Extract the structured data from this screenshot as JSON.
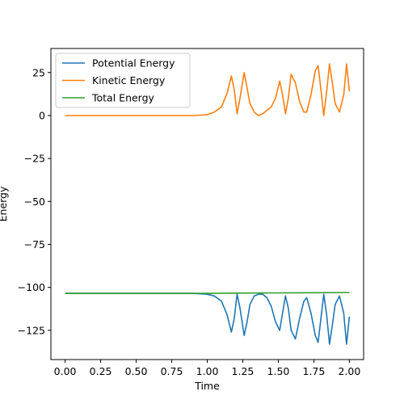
{
  "chart_data": {
    "type": "line",
    "xlabel": "Time",
    "ylabel": "Energy",
    "xlim": [
      -0.1,
      2.1
    ],
    "ylim": [
      -142,
      39
    ],
    "xticks": [
      0.0,
      0.25,
      0.5,
      0.75,
      1.0,
      1.25,
      1.5,
      1.75,
      2.0
    ],
    "xtick_labels": [
      "0.00",
      "0.25",
      "0.50",
      "0.75",
      "1.00",
      "1.25",
      "1.50",
      "1.75",
      "2.00"
    ],
    "yticks": [
      25,
      0,
      -25,
      -50,
      -75,
      -100,
      -125
    ],
    "ytick_labels": [
      "25",
      "0",
      "−25",
      "−50",
      "−75",
      "−100",
      "−125"
    ],
    "legend_position": "upper-left",
    "grid": false,
    "series": [
      {
        "name": "Potential Energy",
        "color": "#1f77b4",
        "x": [
          0.0,
          0.5,
          0.9,
          1.0,
          1.05,
          1.1,
          1.14,
          1.17,
          1.19,
          1.21,
          1.23,
          1.26,
          1.28,
          1.3,
          1.33,
          1.36,
          1.39,
          1.42,
          1.45,
          1.48,
          1.51,
          1.53,
          1.55,
          1.57,
          1.59,
          1.62,
          1.65,
          1.68,
          1.7,
          1.73,
          1.76,
          1.78,
          1.8,
          1.82,
          1.84,
          1.86,
          1.88,
          1.9,
          1.93,
          1.96,
          1.98,
          2.0
        ],
        "y": [
          -103.5,
          -103.5,
          -103.5,
          -104,
          -105,
          -108,
          -116,
          -126,
          -118,
          -104,
          -112,
          -128,
          -120,
          -110,
          -105,
          -104,
          -104,
          -106,
          -111,
          -120,
          -125,
          -115,
          -105,
          -112,
          -125,
          -130,
          -118,
          -108,
          -106,
          -115,
          -128,
          -132,
          -118,
          -104,
          -116,
          -133,
          -122,
          -110,
          -105,
          -115,
          -133,
          -117
        ]
      },
      {
        "name": "Kinetic Energy",
        "color": "#ff7f0e",
        "x": [
          0.0,
          0.5,
          0.9,
          1.0,
          1.05,
          1.1,
          1.14,
          1.17,
          1.19,
          1.21,
          1.23,
          1.26,
          1.28,
          1.3,
          1.33,
          1.36,
          1.39,
          1.42,
          1.45,
          1.48,
          1.51,
          1.53,
          1.55,
          1.57,
          1.59,
          1.62,
          1.65,
          1.68,
          1.7,
          1.73,
          1.76,
          1.78,
          1.8,
          1.82,
          1.84,
          1.86,
          1.88,
          1.9,
          1.93,
          1.96,
          1.98,
          2.0
        ],
        "y": [
          0,
          0,
          0,
          0.5,
          2,
          5,
          13,
          23,
          15,
          1,
          10,
          25,
          16,
          7,
          2,
          0,
          1,
          3,
          5,
          10,
          20,
          12,
          1,
          10,
          24,
          19,
          8,
          2,
          2,
          12,
          26,
          29,
          15,
          0,
          14,
          30,
          19,
          7,
          2,
          12,
          30,
          14
        ]
      },
      {
        "name": "Total Energy",
        "color": "#2ca02c",
        "x": [
          0.0,
          0.5,
          1.0,
          1.25,
          1.5,
          1.75,
          2.0
        ],
        "y": [
          -103.5,
          -103.5,
          -103.5,
          -103.3,
          -103.2,
          -103.1,
          -103.0
        ]
      }
    ]
  }
}
